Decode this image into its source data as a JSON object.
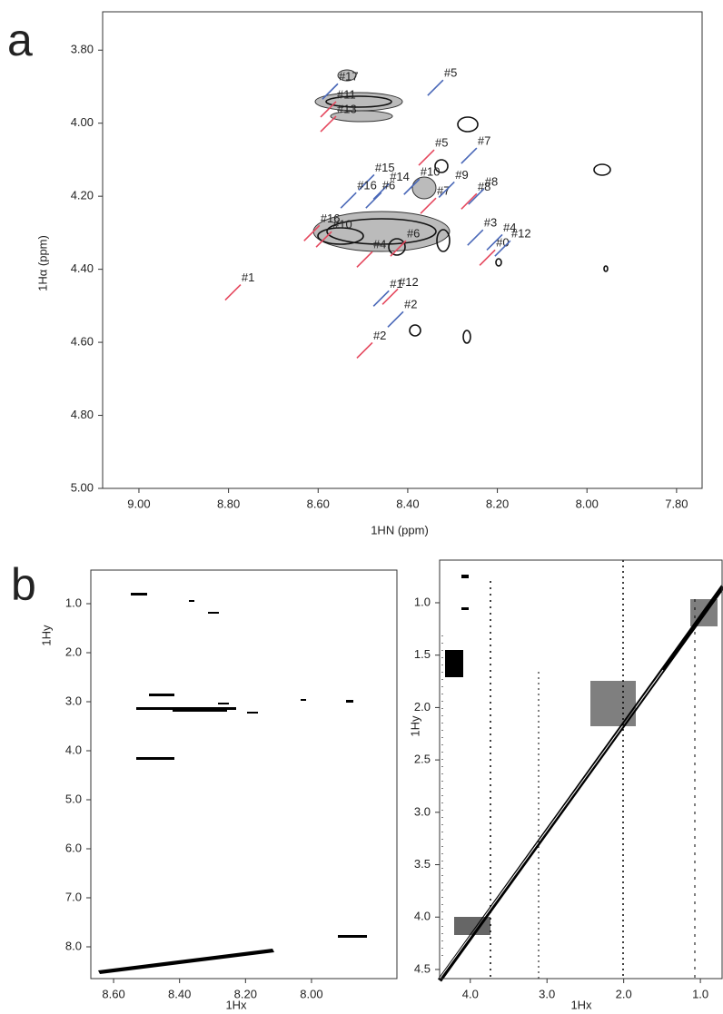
{
  "chart_data": [
    {
      "type": "annotated-spectrum",
      "panel": "a",
      "xlabel": "1HN (ppm)",
      "ylabel": "1Hα (ppm)",
      "xlim": [
        9.081,
        7.743
      ],
      "ylim": [
        3.695,
        5.0
      ],
      "yaxis_inverted": true,
      "xticks": [
        {
          "value": 9.0,
          "label": "9.00"
        },
        {
          "value": 8.8,
          "label": "8.80"
        },
        {
          "value": 8.6,
          "label": "8.60"
        },
        {
          "value": 8.4,
          "label": "8.40"
        },
        {
          "value": 8.2,
          "label": "8.20"
        },
        {
          "value": 8.0,
          "label": "8.00"
        },
        {
          "value": 7.8,
          "label": "7.80"
        }
      ],
      "yticks": [
        {
          "value": 3.8,
          "label": "3.80"
        },
        {
          "value": 4.0,
          "label": "4.00"
        },
        {
          "value": 4.2,
          "label": "4.20"
        },
        {
          "value": 4.4,
          "label": "4.40"
        },
        {
          "value": 4.6,
          "label": "4.60"
        },
        {
          "value": 4.8,
          "label": "4.80"
        },
        {
          "value": 5.0,
          "label": "5.00"
        }
      ],
      "annotations": [
        {
          "text": "#1",
          "x": 8.773,
          "y": 4.442,
          "color": "#e5485e"
        },
        {
          "text": "#2",
          "x": 8.479,
          "y": 4.601,
          "color": "#e5485e"
        },
        {
          "text": "#12",
          "x": 8.422,
          "y": 4.454,
          "color": "#e5485e"
        },
        {
          "text": "#5",
          "x": 8.341,
          "y": 4.073,
          "color": "#e5485e"
        },
        {
          "text": "#7",
          "x": 8.337,
          "y": 4.205,
          "color": "#e5485e"
        },
        {
          "text": "#8",
          "x": 8.246,
          "y": 4.193,
          "color": "#e5485e"
        },
        {
          "text": "#0",
          "x": 8.205,
          "y": 4.347,
          "color": "#e5485e"
        },
        {
          "text": "#6",
          "x": 8.404,
          "y": 4.322,
          "color": "#e5485e"
        },
        {
          "text": "#4",
          "x": 8.479,
          "y": 4.352,
          "color": "#e5485e"
        },
        {
          "text": "#11",
          "x": 8.56,
          "y": 3.941,
          "color": "#e5485e"
        },
        {
          "text": "#13",
          "x": 8.56,
          "y": 3.981,
          "color": "#e5485e"
        },
        {
          "text": "#16",
          "x": 8.597,
          "y": 4.28,
          "color": "#e5485e"
        },
        {
          "text": "#10",
          "x": 8.57,
          "y": 4.297,
          "color": "#e5485e"
        },
        {
          "text": "#17",
          "x": 8.556,
          "y": 3.892,
          "color": "#4a68b8"
        },
        {
          "text": "#5",
          "x": 8.321,
          "y": 3.882,
          "color": "#4a68b8"
        },
        {
          "text": "#7",
          "x": 8.246,
          "y": 4.068,
          "color": "#4a68b8"
        },
        {
          "text": "#15",
          "x": 8.475,
          "y": 4.141,
          "color": "#4a68b8"
        },
        {
          "text": "#14",
          "x": 8.442,
          "y": 4.166,
          "color": "#4a68b8"
        },
        {
          "text": "#10",
          "x": 8.374,
          "y": 4.153,
          "color": "#4a68b8"
        },
        {
          "text": "#9",
          "x": 8.296,
          "y": 4.161,
          "color": "#4a68b8"
        },
        {
          "text": "#8",
          "x": 8.23,
          "y": 4.18,
          "color": "#4a68b8"
        },
        {
          "text": "#16",
          "x": 8.515,
          "y": 4.19,
          "color": "#4a68b8"
        },
        {
          "text": "#6",
          "x": 8.459,
          "y": 4.19,
          "color": "#4a68b8"
        },
        {
          "text": "#3",
          "x": 8.232,
          "y": 4.292,
          "color": "#4a68b8"
        },
        {
          "text": "#4",
          "x": 8.189,
          "y": 4.305,
          "color": "#4a68b8"
        },
        {
          "text": "#12",
          "x": 8.171,
          "y": 4.322,
          "color": "#4a68b8"
        },
        {
          "text": "#1",
          "x": 8.442,
          "y": 4.459,
          "color": "#4a68b8"
        },
        {
          "text": "#2",
          "x": 8.41,
          "y": 4.516,
          "color": "#4a68b8"
        }
      ]
    },
    {
      "type": "spectrum",
      "panel": "b",
      "xlabel": "1Hx",
      "ylabel": "1Hy",
      "xlim": [
        8.669,
        7.741
      ],
      "ylim": [
        0.315,
        8.648
      ],
      "yaxis_inverted": true,
      "xticks": [
        {
          "value": 8.6,
          "label": "8.60"
        },
        {
          "value": 8.4,
          "label": "8.40"
        },
        {
          "value": 8.2,
          "label": "8.20"
        },
        {
          "value": 8.0,
          "label": "8.00"
        }
      ],
      "yticks": [
        {
          "value": 1,
          "label": "1.0"
        },
        {
          "value": 2,
          "label": "2.0"
        },
        {
          "value": 3,
          "label": "3.0"
        },
        {
          "value": 4,
          "label": "4.0"
        },
        {
          "value": 5,
          "label": "5.0"
        },
        {
          "value": 6,
          "label": "6.0"
        },
        {
          "value": 7,
          "label": "7.0"
        },
        {
          "value": 8,
          "label": "8.0"
        }
      ]
    },
    {
      "type": "spectrum",
      "xlabel": "1Hx",
      "ylabel": "1Hy",
      "xlim": [
        4.4,
        0.717
      ],
      "ylim": [
        0.593,
        4.587
      ],
      "yaxis_inverted": true,
      "xticks": [
        {
          "value": 4,
          "label": "4.0"
        },
        {
          "value": 3,
          "label": "3.0"
        },
        {
          "value": 2,
          "label": "2.0"
        },
        {
          "value": 1,
          "label": "1.0"
        }
      ],
      "yticks": [
        {
          "value": 1,
          "label": "1.0"
        },
        1.5,
        {
          "value": 2,
          "label": "2.0"
        },
        2.5,
        {
          "value": 3,
          "label": "3.0"
        },
        3.5,
        {
          "value": 4,
          "label": "4.0"
        },
        4.5
      ]
    }
  ]
}
